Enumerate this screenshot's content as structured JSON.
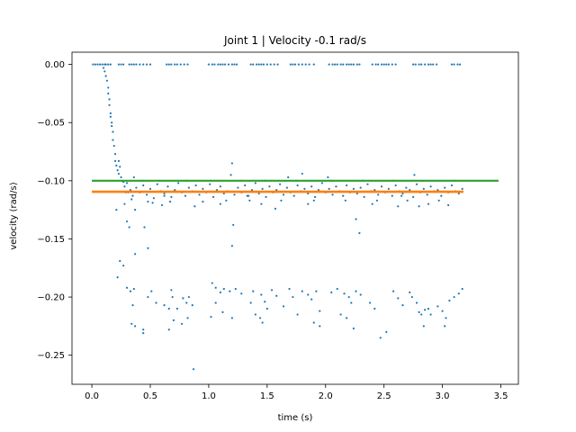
{
  "chart_data": {
    "type": "scatter",
    "title": "Joint 1 | Velocity -0.1 rad/s",
    "xlabel": "time (s)",
    "ylabel": "velocity (rad/s)",
    "xlim": [
      -0.17,
      3.65
    ],
    "ylim": [
      -0.275,
      0.0105
    ],
    "xticks": [
      0.0,
      0.5,
      1.0,
      1.5,
      2.0,
      2.5,
      3.0,
      3.5
    ],
    "xtick_labels": [
      "0.0",
      "0.5",
      "1.0",
      "1.5",
      "2.0",
      "2.5",
      "3.0",
      "3.5"
    ],
    "yticks": [
      0.0,
      -0.05,
      -0.1,
      -0.15,
      -0.2,
      -0.25
    ],
    "ytick_labels": [
      "0.00",
      "−0.05",
      "−0.10",
      "−0.15",
      "−0.20",
      "−0.25"
    ],
    "grid": false,
    "legend": "none",
    "colors": {
      "points": "#1f77b4",
      "estimate": "#ff7f0e",
      "target": "#2ca02c"
    },
    "zero_points_x": [
      0.01,
      0.03,
      0.05,
      0.07,
      0.09,
      0.11,
      0.12,
      0.14,
      0.16,
      0.23,
      0.25,
      0.27,
      0.32,
      0.34,
      0.36,
      0.38,
      0.41,
      0.44,
      0.47,
      0.5,
      0.64,
      0.66,
      0.68,
      0.71,
      0.73,
      0.76,
      0.79,
      0.82,
      1.0,
      1.03,
      1.05,
      1.08,
      1.1,
      1.12,
      1.14,
      1.17,
      1.2,
      1.22,
      1.24,
      1.36,
      1.38,
      1.41,
      1.43,
      1.45,
      1.47,
      1.5,
      1.53,
      1.56,
      1.59,
      1.7,
      1.72,
      1.74,
      1.77,
      1.8,
      1.83,
      1.86,
      1.9,
      2.03,
      2.06,
      2.08,
      2.1,
      2.13,
      2.15,
      2.18,
      2.2,
      2.22,
      2.24,
      2.27,
      2.29,
      2.4,
      2.43,
      2.45,
      2.48,
      2.5,
      2.52,
      2.54,
      2.57,
      2.6,
      2.75,
      2.77,
      2.8,
      2.82,
      2.85,
      2.88,
      2.9,
      2.92,
      2.95,
      3.08,
      3.1,
      3.13,
      3.15
    ],
    "transient_points": [
      [
        0.1,
        -0.003
      ],
      [
        0.11,
        -0.006
      ],
      [
        0.12,
        -0.01
      ],
      [
        0.13,
        -0.014
      ],
      [
        0.14,
        -0.02
      ],
      [
        0.14,
        -0.025
      ],
      [
        0.15,
        -0.03
      ],
      [
        0.15,
        -0.035
      ],
      [
        0.16,
        -0.042
      ],
      [
        0.16,
        -0.045
      ],
      [
        0.17,
        -0.05
      ],
      [
        0.17,
        -0.053
      ],
      [
        0.18,
        -0.058
      ],
      [
        0.18,
        -0.065
      ],
      [
        0.19,
        -0.07
      ],
      [
        0.2,
        -0.077
      ],
      [
        0.2,
        -0.083
      ],
      [
        0.21,
        -0.087
      ],
      [
        0.22,
        -0.091
      ],
      [
        0.23,
        -0.083
      ],
      [
        0.23,
        -0.094
      ],
      [
        0.24,
        -0.088
      ],
      [
        0.25,
        -0.097
      ],
      [
        0.26,
        -0.1
      ],
      [
        0.21,
        -0.125
      ],
      [
        0.24,
        -0.169
      ],
      [
        0.22,
        -0.183
      ],
      [
        0.27,
        -0.101
      ],
      [
        0.28,
        -0.105
      ],
      [
        0.29,
        -0.11
      ]
    ],
    "cluster_points": [
      [
        0.3,
        -0.102
      ],
      [
        0.33,
        -0.108
      ],
      [
        0.35,
        -0.113
      ],
      [
        0.38,
        -0.106
      ],
      [
        0.41,
        -0.11
      ],
      [
        0.44,
        -0.104
      ],
      [
        0.47,
        -0.112
      ],
      [
        0.5,
        -0.107
      ],
      [
        0.53,
        -0.115
      ],
      [
        0.56,
        -0.103
      ],
      [
        0.59,
        -0.109
      ],
      [
        0.62,
        -0.111
      ],
      [
        0.65,
        -0.105
      ],
      [
        0.68,
        -0.114
      ],
      [
        0.71,
        -0.108
      ],
      [
        0.74,
        -0.102
      ],
      [
        0.77,
        -0.11
      ],
      [
        0.8,
        -0.113
      ],
      [
        0.83,
        -0.106
      ],
      [
        0.86,
        -0.109
      ],
      [
        0.89,
        -0.104
      ],
      [
        0.92,
        -0.112
      ],
      [
        0.95,
        -0.107
      ],
      [
        0.98,
        -0.11
      ],
      [
        1.01,
        -0.103
      ],
      [
        1.04,
        -0.114
      ],
      [
        1.07,
        -0.108
      ],
      [
        1.1,
        -0.105
      ],
      [
        1.13,
        -0.111
      ],
      [
        1.16,
        -0.109
      ],
      [
        1.19,
        -0.095
      ],
      [
        1.22,
        -0.112
      ],
      [
        1.25,
        -0.106
      ],
      [
        1.28,
        -0.11
      ],
      [
        1.31,
        -0.104
      ],
      [
        1.34,
        -0.113
      ],
      [
        1.37,
        -0.108
      ],
      [
        1.4,
        -0.102
      ],
      [
        1.43,
        -0.111
      ],
      [
        1.46,
        -0.107
      ],
      [
        1.49,
        -0.114
      ],
      [
        1.52,
        -0.105
      ],
      [
        1.55,
        -0.11
      ],
      [
        1.58,
        -0.108
      ],
      [
        1.61,
        -0.103
      ],
      [
        1.64,
        -0.112
      ],
      [
        1.67,
        -0.106
      ],
      [
        1.7,
        -0.11
      ],
      [
        1.73,
        -0.113
      ],
      [
        1.76,
        -0.104
      ],
      [
        1.79,
        -0.109
      ],
      [
        1.82,
        -0.107
      ],
      [
        1.85,
        -0.111
      ],
      [
        1.88,
        -0.105
      ],
      [
        1.91,
        -0.114
      ],
      [
        1.94,
        -0.108
      ],
      [
        1.97,
        -0.102
      ],
      [
        2.0,
        -0.11
      ],
      [
        2.03,
        -0.107
      ],
      [
        2.06,
        -0.112
      ],
      [
        2.09,
        -0.105
      ],
      [
        2.12,
        -0.109
      ],
      [
        2.15,
        -0.113
      ],
      [
        2.18,
        -0.104
      ],
      [
        2.21,
        -0.11
      ],
      [
        2.24,
        -0.107
      ],
      [
        2.27,
        -0.111
      ],
      [
        2.3,
        -0.106
      ],
      [
        2.33,
        -0.114
      ],
      [
        2.36,
        -0.103
      ],
      [
        2.39,
        -0.109
      ],
      [
        2.42,
        -0.108
      ],
      [
        2.45,
        -0.112
      ],
      [
        2.48,
        -0.105
      ],
      [
        2.51,
        -0.11
      ],
      [
        2.54,
        -0.107
      ],
      [
        2.57,
        -0.113
      ],
      [
        2.6,
        -0.104
      ],
      [
        2.63,
        -0.109
      ],
      [
        2.66,
        -0.111
      ],
      [
        2.69,
        -0.106
      ],
      [
        2.72,
        -0.108
      ],
      [
        2.75,
        -0.114
      ],
      [
        2.78,
        -0.103
      ],
      [
        2.81,
        -0.11
      ],
      [
        2.84,
        -0.107
      ],
      [
        2.87,
        -0.112
      ],
      [
        2.9,
        -0.105
      ],
      [
        2.93,
        -0.109
      ],
      [
        2.96,
        -0.108
      ],
      [
        2.99,
        -0.113
      ],
      [
        3.02,
        -0.106
      ],
      [
        3.05,
        -0.11
      ],
      [
        3.08,
        -0.104
      ],
      [
        3.11,
        -0.109
      ],
      [
        3.14,
        -0.111
      ],
      [
        3.17,
        -0.107
      ],
      [
        0.36,
        -0.097
      ],
      [
        0.52,
        -0.119
      ],
      [
        0.6,
        -0.121
      ],
      [
        0.88,
        -0.122
      ],
      [
        1.1,
        -0.12
      ],
      [
        1.2,
        -0.085
      ],
      [
        1.21,
        -0.138
      ],
      [
        1.2,
        -0.156
      ],
      [
        1.45,
        -0.12
      ],
      [
        1.57,
        -0.124
      ],
      [
        1.68,
        -0.097
      ],
      [
        1.8,
        -0.094
      ],
      [
        1.85,
        -0.12
      ],
      [
        2.02,
        -0.097
      ],
      [
        2.26,
        -0.133
      ],
      [
        2.29,
        -0.145
      ],
      [
        2.4,
        -0.12
      ],
      [
        2.62,
        -0.122
      ],
      [
        2.76,
        -0.095
      ],
      [
        2.8,
        -0.122
      ],
      [
        2.88,
        -0.12
      ],
      [
        3.05,
        -0.121
      ],
      [
        0.31,
        -0.11
      ],
      [
        0.34,
        -0.116
      ],
      [
        0.43,
        -0.1
      ],
      [
        0.48,
        -0.118
      ],
      [
        0.58,
        -0.1
      ],
      [
        0.67,
        -0.118
      ],
      [
        0.81,
        -0.1
      ],
      [
        0.95,
        -0.118
      ],
      [
        1.02,
        -0.1
      ],
      [
        1.15,
        -0.117
      ],
      [
        1.27,
        -0.1
      ],
      [
        1.35,
        -0.117
      ],
      [
        1.48,
        -0.1
      ],
      [
        1.62,
        -0.117
      ],
      [
        1.75,
        -0.1
      ],
      [
        1.9,
        -0.117
      ],
      [
        2.05,
        -0.1
      ],
      [
        2.17,
        -0.117
      ],
      [
        2.32,
        -0.1
      ],
      [
        2.44,
        -0.117
      ],
      [
        2.58,
        -0.1
      ],
      [
        2.7,
        -0.117
      ],
      [
        2.83,
        -0.1
      ],
      [
        2.97,
        -0.117
      ],
      [
        3.1,
        -0.1
      ],
      [
        0.28,
        -0.12
      ],
      [
        0.62,
        -0.113
      ],
      [
        1.33,
        -0.113
      ],
      [
        2.65,
        -0.113
      ]
    ],
    "outlier_points": [
      [
        0.3,
        -0.135
      ],
      [
        0.32,
        -0.14
      ],
      [
        0.37,
        -0.125
      ],
      [
        0.45,
        -0.14
      ],
      [
        0.48,
        -0.158
      ],
      [
        0.37,
        -0.163
      ],
      [
        0.27,
        -0.173
      ],
      [
        0.3,
        -0.192
      ],
      [
        0.33,
        -0.195
      ],
      [
        0.36,
        -0.193
      ],
      [
        0.35,
        -0.207
      ],
      [
        0.34,
        -0.223
      ],
      [
        0.37,
        -0.225
      ],
      [
        0.44,
        -0.228
      ],
      [
        0.44,
        -0.231
      ],
      [
        0.48,
        -0.2
      ],
      [
        0.51,
        -0.195
      ],
      [
        0.55,
        -0.205
      ],
      [
        0.62,
        -0.207
      ],
      [
        0.68,
        -0.194
      ],
      [
        0.69,
        -0.2
      ],
      [
        0.66,
        -0.21
      ],
      [
        0.73,
        -0.21
      ],
      [
        0.7,
        -0.22
      ],
      [
        0.77,
        -0.223
      ],
      [
        0.78,
        -0.201
      ],
      [
        0.81,
        -0.205
      ],
      [
        0.83,
        -0.2
      ],
      [
        0.86,
        -0.207
      ],
      [
        0.66,
        -0.228
      ],
      [
        0.82,
        -0.218
      ],
      [
        0.87,
        -0.262
      ],
      [
        1.03,
        -0.188
      ],
      [
        1.06,
        -0.192
      ],
      [
        1.1,
        -0.196
      ],
      [
        1.13,
        -0.193
      ],
      [
        1.06,
        -0.205
      ],
      [
        1.12,
        -0.213
      ],
      [
        1.18,
        -0.195
      ],
      [
        1.23,
        -0.193
      ],
      [
        1.02,
        -0.217
      ],
      [
        1.2,
        -0.218
      ],
      [
        1.28,
        -0.197
      ],
      [
        1.36,
        -0.205
      ],
      [
        1.38,
        -0.195
      ],
      [
        1.45,
        -0.198
      ],
      [
        1.48,
        -0.204
      ],
      [
        1.4,
        -0.215
      ],
      [
        1.44,
        -0.218
      ],
      [
        1.46,
        -0.222
      ],
      [
        1.5,
        -0.21
      ],
      [
        1.54,
        -0.194
      ],
      [
        1.58,
        -0.199
      ],
      [
        1.64,
        -0.208
      ],
      [
        1.69,
        -0.193
      ],
      [
        1.72,
        -0.2
      ],
      [
        1.8,
        -0.195
      ],
      [
        1.76,
        -0.215
      ],
      [
        1.85,
        -0.198
      ],
      [
        1.88,
        -0.202
      ],
      [
        1.92,
        -0.195
      ],
      [
        1.95,
        -0.212
      ],
      [
        1.9,
        -0.222
      ],
      [
        1.95,
        -0.225
      ],
      [
        2.05,
        -0.196
      ],
      [
        2.1,
        -0.193
      ],
      [
        2.16,
        -0.197
      ],
      [
        2.2,
        -0.2
      ],
      [
        2.13,
        -0.215
      ],
      [
        2.18,
        -0.218
      ],
      [
        2.22,
        -0.205
      ],
      [
        2.26,
        -0.195
      ],
      [
        2.3,
        -0.198
      ],
      [
        2.24,
        -0.227
      ],
      [
        2.38,
        -0.205
      ],
      [
        2.42,
        -0.21
      ],
      [
        2.47,
        -0.235
      ],
      [
        2.52,
        -0.23
      ],
      [
        2.58,
        -0.195
      ],
      [
        2.62,
        -0.201
      ],
      [
        2.66,
        -0.207
      ],
      [
        2.72,
        -0.196
      ],
      [
        2.74,
        -0.2
      ],
      [
        2.78,
        -0.205
      ],
      [
        2.8,
        -0.213
      ],
      [
        2.82,
        -0.215
      ],
      [
        2.85,
        -0.211
      ],
      [
        2.88,
        -0.21
      ],
      [
        2.84,
        -0.225
      ],
      [
        2.9,
        -0.215
      ],
      [
        2.96,
        -0.208
      ],
      [
        3.0,
        -0.212
      ],
      [
        3.03,
        -0.218
      ],
      [
        3.06,
        -0.203
      ],
      [
        3.1,
        -0.2
      ],
      [
        3.14,
        -0.197
      ],
      [
        3.17,
        -0.193
      ],
      [
        3.02,
        -0.225
      ]
    ],
    "series": [
      {
        "points_key": "samples",
        "color": "#1f77b4"
      },
      {
        "x": [
          0.0,
          3.18
        ],
        "y": [
          -0.1095,
          -0.1095
        ],
        "color": "#ff7f0e"
      },
      {
        "x": [
          0.0,
          3.48
        ],
        "y": [
          -0.1,
          -0.1
        ],
        "color": "#2ca02c"
      }
    ]
  }
}
